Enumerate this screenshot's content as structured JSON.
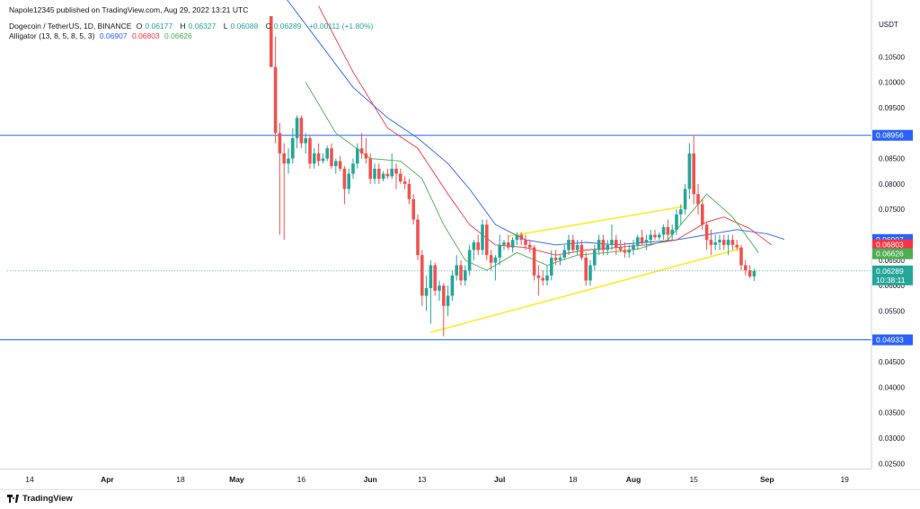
{
  "publisher_line": "Napole12345 published on TradingView.com, Aug 29, 2022 13:21 UTC",
  "symbol": {
    "name": "Dogecoin / TetherUS, 1D, BINANCE",
    "open_label": "O",
    "open": "0.06177",
    "high_label": "H",
    "high": "0.06327",
    "low_label": "L",
    "low": "0.06088",
    "close_label": "C",
    "close": "0.06289",
    "change": "+0.00111 (+1.80%)"
  },
  "indicator": {
    "name": "Alligator (13, 8, 5, 8, 5, 3)",
    "jaw": "0.06907",
    "teeth": "0.06803",
    "lips": "0.06626"
  },
  "brand": "TradingView",
  "colors": {
    "up": "#26a69a",
    "down": "#ef5350",
    "jaw": "#2962ff",
    "teeth": "#f23645",
    "lips": "#4caf50",
    "hline": "#2962ff",
    "wedge": "#ffeb3b"
  },
  "chart_data": {
    "type": "candlestick",
    "currency": "USDT",
    "ylim": [
      0.024,
      0.113
    ],
    "y_ticks": [
      "0.10500",
      "0.10000",
      "0.09500",
      "0.08500",
      "0.08000",
      "0.07500",
      "0.06500",
      "0.06000",
      "0.05500",
      "0.04500",
      "0.04000",
      "0.03500",
      "0.03000",
      "0.02500"
    ],
    "x_ticks": [
      "14",
      "Apr",
      "18",
      "May",
      "16",
      "Jun",
      "13",
      "Jul",
      "18",
      "Aug",
      "15",
      "Sep",
      "19"
    ],
    "horizontal_lines": [
      {
        "value": 0.08956,
        "label": "0.08956"
      },
      {
        "value": 0.04933,
        "label": "0.04933"
      }
    ],
    "price_labels": [
      {
        "value": 0.06907,
        "label": "0.06907",
        "color": "#2962ff"
      },
      {
        "value": 0.06803,
        "label": "0.06803",
        "color": "#f23645"
      },
      {
        "value": 0.06626,
        "label": "0.06626",
        "color": "#4caf50"
      },
      {
        "value": 0.06289,
        "label": "0.06289",
        "sub": "10:38:11",
        "color": "#26a69a"
      }
    ],
    "trendlines": [
      {
        "from": [
          "2022-06-15",
          0.0508
        ],
        "to": [
          "2022-08-26",
          0.0673
        ]
      },
      {
        "from": [
          "2022-07-03",
          0.0697
        ],
        "to": [
          "2022-08-13",
          0.0756
        ]
      }
    ],
    "candles": [
      [
        "2022-05-09",
        0.115,
        0.119,
        0.103,
        0.103
      ],
      [
        "2022-05-10",
        0.103,
        0.109,
        0.088,
        0.09
      ],
      [
        "2022-05-11",
        0.09,
        0.092,
        0.07,
        0.086
      ],
      [
        "2022-05-12",
        0.086,
        0.088,
        0.069,
        0.084
      ],
      [
        "2022-05-13",
        0.084,
        0.087,
        0.082,
        0.085
      ],
      [
        "2022-05-14",
        0.085,
        0.091,
        0.084,
        0.089
      ],
      [
        "2022-05-15",
        0.089,
        0.0935,
        0.087,
        0.093
      ],
      [
        "2022-05-16",
        0.093,
        0.0935,
        0.087,
        0.088
      ],
      [
        "2022-05-17",
        0.088,
        0.09,
        0.086,
        0.089
      ],
      [
        "2022-05-18",
        0.089,
        0.0895,
        0.083,
        0.084
      ],
      [
        "2022-05-19",
        0.084,
        0.087,
        0.083,
        0.086
      ],
      [
        "2022-05-20",
        0.086,
        0.088,
        0.0835,
        0.0845
      ],
      [
        "2022-05-21",
        0.0845,
        0.086,
        0.084,
        0.085
      ],
      [
        "2022-05-22",
        0.085,
        0.0875,
        0.0845,
        0.087
      ],
      [
        "2022-05-23",
        0.087,
        0.088,
        0.083,
        0.0835
      ],
      [
        "2022-05-24",
        0.0835,
        0.085,
        0.082,
        0.0845
      ],
      [
        "2022-05-25",
        0.0845,
        0.0855,
        0.0825,
        0.083
      ],
      [
        "2022-05-26",
        0.083,
        0.0835,
        0.076,
        0.079
      ],
      [
        "2022-05-27",
        0.079,
        0.083,
        0.078,
        0.082
      ],
      [
        "2022-05-28",
        0.082,
        0.085,
        0.081,
        0.084
      ],
      [
        "2022-05-29",
        0.084,
        0.088,
        0.083,
        0.087
      ],
      [
        "2022-05-30",
        0.087,
        0.09,
        0.085,
        0.086
      ],
      [
        "2022-05-31",
        0.086,
        0.089,
        0.084,
        0.085
      ],
      [
        "2022-06-01",
        0.085,
        0.086,
        0.08,
        0.081
      ],
      [
        "2022-06-02",
        0.081,
        0.084,
        0.08,
        0.083
      ],
      [
        "2022-06-03",
        0.083,
        0.084,
        0.08,
        0.081
      ],
      [
        "2022-06-04",
        0.081,
        0.0825,
        0.0805,
        0.082
      ],
      [
        "2022-06-05",
        0.082,
        0.083,
        0.081,
        0.0815
      ],
      [
        "2022-06-06",
        0.0815,
        0.086,
        0.081,
        0.083
      ],
      [
        "2022-06-07",
        0.083,
        0.084,
        0.079,
        0.082
      ],
      [
        "2022-06-08",
        0.082,
        0.083,
        0.08,
        0.0805
      ],
      [
        "2022-06-09",
        0.0805,
        0.0815,
        0.079,
        0.08
      ],
      [
        "2022-06-10",
        0.08,
        0.081,
        0.076,
        0.077
      ],
      [
        "2022-06-11",
        0.077,
        0.078,
        0.072,
        0.073
      ],
      [
        "2022-06-12",
        0.073,
        0.074,
        0.065,
        0.066
      ],
      [
        "2022-06-13",
        0.066,
        0.067,
        0.056,
        0.058
      ],
      [
        "2022-06-14",
        0.058,
        0.062,
        0.055,
        0.0595
      ],
      [
        "2022-06-15",
        0.0595,
        0.065,
        0.0525,
        0.064
      ],
      [
        "2022-06-16",
        0.064,
        0.0645,
        0.058,
        0.059
      ],
      [
        "2022-06-17",
        0.059,
        0.061,
        0.057,
        0.06
      ],
      [
        "2022-06-18",
        0.06,
        0.0605,
        0.05,
        0.056
      ],
      [
        "2022-06-19",
        0.056,
        0.06,
        0.054,
        0.058
      ],
      [
        "2022-06-20",
        0.058,
        0.063,
        0.057,
        0.062
      ],
      [
        "2022-06-21",
        0.062,
        0.066,
        0.061,
        0.064
      ],
      [
        "2022-06-22",
        0.064,
        0.065,
        0.06,
        0.061
      ],
      [
        "2022-06-23",
        0.061,
        0.064,
        0.06,
        0.063
      ],
      [
        "2022-06-24",
        0.063,
        0.068,
        0.062,
        0.067
      ],
      [
        "2022-06-25",
        0.067,
        0.069,
        0.065,
        0.0685
      ],
      [
        "2022-06-26",
        0.0685,
        0.07,
        0.066,
        0.067
      ],
      [
        "2022-06-27",
        0.067,
        0.073,
        0.066,
        0.072
      ],
      [
        "2022-06-28",
        0.072,
        0.073,
        0.065,
        0.066
      ],
      [
        "2022-06-29",
        0.066,
        0.067,
        0.063,
        0.0645
      ],
      [
        "2022-06-30",
        0.0645,
        0.066,
        0.061,
        0.0655
      ],
      [
        "2022-07-01",
        0.0655,
        0.07,
        0.064,
        0.068
      ],
      [
        "2022-07-02",
        0.068,
        0.069,
        0.067,
        0.0685
      ],
      [
        "2022-07-03",
        0.0685,
        0.07,
        0.067,
        0.0675
      ],
      [
        "2022-07-04",
        0.0675,
        0.0695,
        0.0665,
        0.069
      ],
      [
        "2022-07-05",
        0.069,
        0.0705,
        0.068,
        0.07
      ],
      [
        "2022-07-06",
        0.07,
        0.0705,
        0.068,
        0.069
      ],
      [
        "2022-07-07",
        0.069,
        0.07,
        0.067,
        0.068
      ],
      [
        "2022-07-08",
        0.068,
        0.069,
        0.0665,
        0.0675
      ],
      [
        "2022-07-09",
        0.0675,
        0.068,
        0.061,
        0.062
      ],
      [
        "2022-07-10",
        0.062,
        0.064,
        0.058,
        0.0615
      ],
      [
        "2022-07-11",
        0.0615,
        0.063,
        0.06,
        0.061
      ],
      [
        "2022-07-12",
        0.061,
        0.064,
        0.06,
        0.062
      ],
      [
        "2022-07-13",
        0.062,
        0.067,
        0.061,
        0.0655
      ],
      [
        "2022-07-14",
        0.0655,
        0.067,
        0.064,
        0.065
      ],
      [
        "2022-07-15",
        0.065,
        0.066,
        0.064,
        0.0655
      ],
      [
        "2022-07-16",
        0.0655,
        0.068,
        0.065,
        0.067
      ],
      [
        "2022-07-17",
        0.067,
        0.07,
        0.066,
        0.069
      ],
      [
        "2022-07-18",
        0.069,
        0.07,
        0.0665,
        0.067
      ],
      [
        "2022-07-19",
        0.067,
        0.069,
        0.066,
        0.068
      ],
      [
        "2022-07-20",
        0.068,
        0.069,
        0.065,
        0.0655
      ],
      [
        "2022-07-21",
        0.0655,
        0.0665,
        0.06,
        0.061
      ],
      [
        "2022-07-22",
        0.061,
        0.065,
        0.06,
        0.064
      ],
      [
        "2022-07-23",
        0.064,
        0.068,
        0.063,
        0.067
      ],
      [
        "2022-07-24",
        0.067,
        0.07,
        0.066,
        0.069
      ],
      [
        "2022-07-25",
        0.069,
        0.07,
        0.066,
        0.067
      ],
      [
        "2022-07-26",
        0.067,
        0.069,
        0.066,
        0.068
      ],
      [
        "2022-07-27",
        0.068,
        0.072,
        0.067,
        0.069
      ],
      [
        "2022-07-28",
        0.069,
        0.07,
        0.066,
        0.0675
      ],
      [
        "2022-07-29",
        0.0675,
        0.069,
        0.0665,
        0.067
      ],
      [
        "2022-07-30",
        0.067,
        0.0685,
        0.0655,
        0.0665
      ],
      [
        "2022-07-31",
        0.0665,
        0.068,
        0.0655,
        0.067
      ],
      [
        "2022-08-01",
        0.067,
        0.069,
        0.066,
        0.068
      ],
      [
        "2022-08-02",
        0.068,
        0.07,
        0.067,
        0.0695
      ],
      [
        "2022-08-03",
        0.0695,
        0.071,
        0.068,
        0.0685
      ],
      [
        "2022-08-04",
        0.0685,
        0.07,
        0.067,
        0.069
      ],
      [
        "2022-08-05",
        0.069,
        0.071,
        0.068,
        0.07
      ],
      [
        "2022-08-06",
        0.07,
        0.071,
        0.069,
        0.0695
      ],
      [
        "2022-08-07",
        0.0695,
        0.0705,
        0.069,
        0.07
      ],
      [
        "2022-08-08",
        0.07,
        0.072,
        0.069,
        0.0715
      ],
      [
        "2022-08-09",
        0.0715,
        0.073,
        0.069,
        0.07
      ],
      [
        "2022-08-10",
        0.07,
        0.072,
        0.069,
        0.071
      ],
      [
        "2022-08-11",
        0.071,
        0.075,
        0.07,
        0.074
      ],
      [
        "2022-08-12",
        0.074,
        0.076,
        0.072,
        0.075
      ],
      [
        "2022-08-13",
        0.075,
        0.08,
        0.074,
        0.079
      ],
      [
        "2022-08-14",
        0.079,
        0.088,
        0.077,
        0.086
      ],
      [
        "2022-08-15",
        0.086,
        0.0896,
        0.076,
        0.078
      ],
      [
        "2022-08-16",
        0.078,
        0.08,
        0.074,
        0.076
      ],
      [
        "2022-08-17",
        0.076,
        0.077,
        0.071,
        0.072
      ],
      [
        "2022-08-18",
        0.072,
        0.0725,
        0.067,
        0.069
      ],
      [
        "2022-08-19",
        0.069,
        0.071,
        0.066,
        0.068
      ],
      [
        "2022-08-20",
        0.068,
        0.07,
        0.067,
        0.0685
      ],
      [
        "2022-08-21",
        0.0685,
        0.07,
        0.067,
        0.069
      ],
      [
        "2022-08-22",
        0.069,
        0.07,
        0.067,
        0.068
      ],
      [
        "2022-08-23",
        0.068,
        0.07,
        0.066,
        0.069
      ],
      [
        "2022-08-24",
        0.069,
        0.07,
        0.067,
        0.068
      ],
      [
        "2022-08-25",
        0.068,
        0.069,
        0.067,
        0.0675
      ],
      [
        "2022-08-26",
        0.0675,
        0.068,
        0.063,
        0.064
      ],
      [
        "2022-08-27",
        0.064,
        0.065,
        0.062,
        0.063
      ],
      [
        "2022-08-28",
        0.063,
        0.064,
        0.0615,
        0.0618
      ],
      [
        "2022-08-29",
        0.0618,
        0.0633,
        0.0609,
        0.0629
      ]
    ],
    "alligator": {
      "jaw": [
        [
          "2022-05-12",
          0.117
        ],
        [
          "2022-05-20",
          0.108
        ],
        [
          "2022-05-28",
          0.099
        ],
        [
          "2022-06-05",
          0.093
        ],
        [
          "2022-06-12",
          0.089
        ],
        [
          "2022-06-19",
          0.084
        ],
        [
          "2022-06-24",
          0.079
        ],
        [
          "2022-06-30",
          0.072
        ],
        [
          "2022-07-07",
          0.069
        ],
        [
          "2022-07-14",
          0.068
        ],
        [
          "2022-07-21",
          0.0685
        ],
        [
          "2022-07-28",
          0.068
        ],
        [
          "2022-08-04",
          0.0685
        ],
        [
          "2022-08-11",
          0.069
        ],
        [
          "2022-08-18",
          0.07
        ],
        [
          "2022-08-25",
          0.071
        ],
        [
          "2022-09-01",
          0.0702
        ],
        [
          "2022-09-05",
          0.0691
        ]
      ],
      "teeth": [
        [
          "2022-05-20",
          0.115
        ],
        [
          "2022-05-28",
          0.102
        ],
        [
          "2022-06-05",
          0.091
        ],
        [
          "2022-06-12",
          0.087
        ],
        [
          "2022-06-19",
          0.078
        ],
        [
          "2022-06-24",
          0.072
        ],
        [
          "2022-06-30",
          0.068
        ],
        [
          "2022-07-07",
          0.0675
        ],
        [
          "2022-07-14",
          0.066
        ],
        [
          "2022-07-21",
          0.067
        ],
        [
          "2022-07-28",
          0.0675
        ],
        [
          "2022-08-04",
          0.068
        ],
        [
          "2022-08-11",
          0.069
        ],
        [
          "2022-08-18",
          0.0725
        ],
        [
          "2022-08-22",
          0.0735
        ],
        [
          "2022-08-28",
          0.0712
        ],
        [
          "2022-09-02",
          0.068
        ]
      ],
      "lips": [
        [
          "2022-05-17",
          0.1
        ],
        [
          "2022-05-24",
          0.09
        ],
        [
          "2022-06-01",
          0.085
        ],
        [
          "2022-06-08",
          0.0845
        ],
        [
          "2022-06-13",
          0.081
        ],
        [
          "2022-06-18",
          0.072
        ],
        [
          "2022-06-23",
          0.065
        ],
        [
          "2022-06-28",
          0.063
        ],
        [
          "2022-07-05",
          0.0665
        ],
        [
          "2022-07-12",
          0.064
        ],
        [
          "2022-07-19",
          0.066
        ],
        [
          "2022-07-26",
          0.0665
        ],
        [
          "2022-08-02",
          0.0672
        ],
        [
          "2022-08-09",
          0.069
        ],
        [
          "2022-08-14",
          0.074
        ],
        [
          "2022-08-18",
          0.078
        ],
        [
          "2022-08-24",
          0.0735
        ],
        [
          "2022-08-30",
          0.0665
        ]
      ]
    }
  }
}
